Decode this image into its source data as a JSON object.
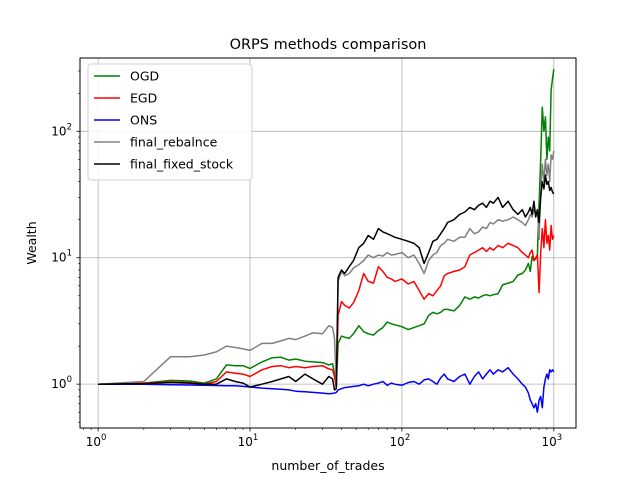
{
  "chart_data": {
    "type": "line",
    "title": "ORPS methods comparison",
    "xlabel": "number_of_trades",
    "ylabel": "Wealth",
    "xscale": "log",
    "yscale": "log",
    "xlim": [
      0.76,
      1400
    ],
    "ylim": [
      0.45,
      380
    ],
    "grid": true,
    "legend_position": "top-left",
    "x_ticks": [
      {
        "base": "10",
        "exp": "0",
        "value": 1
      },
      {
        "base": "10",
        "exp": "1",
        "value": 10
      },
      {
        "base": "10",
        "exp": "2",
        "value": 100
      },
      {
        "base": "10",
        "exp": "3",
        "value": 1000
      }
    ],
    "y_ticks": [
      {
        "base": "10",
        "exp": "0",
        "value": 1
      },
      {
        "base": "10",
        "exp": "1",
        "value": 10
      },
      {
        "base": "10",
        "exp": "2",
        "value": 100
      }
    ],
    "series": [
      {
        "name": "OGD",
        "color": "#008000",
        "x": [
          1,
          2,
          3,
          4,
          5,
          6,
          7,
          8,
          9,
          10,
          12,
          14,
          16,
          18,
          20,
          23,
          26,
          30,
          33,
          35,
          36,
          37,
          38,
          40,
          42,
          45,
          48,
          52,
          56,
          60,
          65,
          70,
          75,
          80,
          85,
          90,
          100,
          110,
          120,
          130,
          140,
          150,
          160,
          170,
          180,
          190,
          200,
          220,
          240,
          260,
          280,
          300,
          320,
          340,
          360,
          380,
          400,
          430,
          460,
          500,
          540,
          580,
          620,
          650,
          680,
          700,
          720,
          740,
          760,
          780,
          800,
          820,
          840,
          860,
          880,
          900,
          920,
          940,
          960,
          980,
          1000
        ],
        "y": [
          1.0,
          1.02,
          1.07,
          1.06,
          1.02,
          1.1,
          1.42,
          1.4,
          1.4,
          1.33,
          1.5,
          1.62,
          1.63,
          1.55,
          1.58,
          1.52,
          1.5,
          1.48,
          1.42,
          1.45,
          1.2,
          0.95,
          2.1,
          2.4,
          2.35,
          2.3,
          2.5,
          2.9,
          2.6,
          2.5,
          2.45,
          2.65,
          2.8,
          3.1,
          3.0,
          2.95,
          2.85,
          2.7,
          2.8,
          2.9,
          3.0,
          3.5,
          3.7,
          3.6,
          3.7,
          3.9,
          3.9,
          3.8,
          4.2,
          4.9,
          4.7,
          4.9,
          4.8,
          5.0,
          5.1,
          5.0,
          5.1,
          5.2,
          6.1,
          6.3,
          6.5,
          7.3,
          7.5,
          8.0,
          9.0,
          7.8,
          10.2,
          9.5,
          9.8,
          10.5,
          27,
          60,
          155,
          100,
          130,
          60,
          90,
          70,
          210,
          260,
          310
        ]
      },
      {
        "name": "EGD",
        "color": "#ff0000",
        "x": [
          1,
          2,
          3,
          4,
          5,
          6,
          7,
          8,
          9,
          10,
          12,
          14,
          16,
          18,
          20,
          23,
          26,
          30,
          33,
          35,
          36,
          37,
          38,
          40,
          42,
          45,
          48,
          52,
          56,
          60,
          65,
          70,
          75,
          80,
          85,
          90,
          100,
          110,
          120,
          130,
          140,
          150,
          160,
          170,
          180,
          190,
          200,
          220,
          240,
          260,
          280,
          300,
          320,
          340,
          360,
          380,
          400,
          430,
          460,
          500,
          540,
          580,
          620,
          650,
          680,
          700,
          720,
          740,
          760,
          780,
          800,
          820,
          840,
          860,
          880,
          900,
          920,
          940,
          960,
          980,
          1000
        ],
        "y": [
          1.0,
          1.02,
          1.04,
          1.03,
          1.0,
          1.05,
          1.25,
          1.22,
          1.2,
          1.15,
          1.3,
          1.38,
          1.4,
          1.35,
          1.38,
          1.35,
          1.38,
          1.4,
          1.32,
          1.3,
          1.15,
          0.95,
          3.5,
          4.5,
          4.2,
          4.0,
          4.4,
          5.5,
          7.5,
          6.5,
          6.3,
          8.5,
          7.8,
          7.0,
          6.8,
          6.5,
          6.8,
          6.2,
          6.5,
          5.5,
          4.7,
          5.2,
          5.0,
          5.5,
          6.0,
          7.2,
          7.5,
          7.8,
          8.0,
          8.5,
          10.5,
          11.0,
          11.5,
          12.0,
          11.2,
          12.0,
          11.5,
          12.5,
          12.0,
          13.0,
          12.5,
          12.0,
          11.0,
          10.5,
          10.0,
          11.0,
          11.5,
          9.5,
          10.0,
          10.5,
          5.3,
          11.0,
          17.0,
          12.0,
          20.0,
          13.0,
          15.0,
          11.5,
          18.0,
          14.0,
          15.0
        ]
      },
      {
        "name": "ONS",
        "color": "#0000ff",
        "x": [
          1,
          2,
          3,
          4,
          5,
          6,
          7,
          8,
          9,
          10,
          12,
          14,
          16,
          18,
          20,
          23,
          26,
          30,
          33,
          35,
          36,
          37,
          38,
          40,
          42,
          45,
          48,
          52,
          56,
          60,
          65,
          70,
          75,
          80,
          85,
          90,
          100,
          110,
          120,
          130,
          140,
          150,
          160,
          170,
          180,
          190,
          200,
          220,
          240,
          260,
          280,
          300,
          320,
          340,
          360,
          380,
          400,
          430,
          460,
          500,
          540,
          580,
          620,
          650,
          680,
          700,
          720,
          740,
          760,
          780,
          800,
          820,
          840,
          860,
          880,
          900,
          920,
          940,
          960,
          980,
          1000
        ],
        "y": [
          1.0,
          1.0,
          0.99,
          0.985,
          0.98,
          0.975,
          0.97,
          0.97,
          0.96,
          0.95,
          0.93,
          0.92,
          0.91,
          0.9,
          0.88,
          0.87,
          0.86,
          0.85,
          0.84,
          0.845,
          0.85,
          0.86,
          0.9,
          0.92,
          0.94,
          0.95,
          0.96,
          0.97,
          1.0,
          0.97,
          1.0,
          1.02,
          1.05,
          0.98,
          1.02,
          1.0,
          0.98,
          1.03,
          1.05,
          1.0,
          1.08,
          1.1,
          1.05,
          1.0,
          1.12,
          1.2,
          1.1,
          1.05,
          1.15,
          1.2,
          1.0,
          1.15,
          1.25,
          1.1,
          1.2,
          1.3,
          1.2,
          1.3,
          1.25,
          1.35,
          1.2,
          1.1,
          1.0,
          0.95,
          0.85,
          0.75,
          0.7,
          0.65,
          0.7,
          0.6,
          0.75,
          0.8,
          0.65,
          0.95,
          1.1,
          1.2,
          1.1,
          1.3,
          1.25,
          1.3,
          1.25
        ]
      },
      {
        "name": "final_rebalnce",
        "color": "#808080",
        "x": [
          1,
          2,
          3,
          4,
          5,
          6,
          7,
          8,
          9,
          10,
          12,
          14,
          16,
          18,
          20,
          23,
          26,
          30,
          33,
          35,
          36,
          37,
          38,
          40,
          42,
          45,
          48,
          52,
          56,
          60,
          65,
          70,
          75,
          80,
          85,
          90,
          100,
          110,
          120,
          130,
          140,
          150,
          160,
          170,
          180,
          190,
          200,
          220,
          240,
          260,
          280,
          300,
          320,
          340,
          360,
          380,
          400,
          430,
          460,
          500,
          540,
          580,
          620,
          650,
          680,
          700,
          720,
          740,
          760,
          780,
          800,
          820,
          840,
          860,
          880,
          900,
          920,
          940,
          960,
          980,
          1000
        ],
        "y": [
          1.0,
          1.05,
          1.65,
          1.65,
          1.7,
          1.8,
          2.0,
          1.95,
          1.9,
          1.85,
          2.1,
          2.1,
          2.2,
          2.3,
          2.25,
          2.4,
          2.55,
          2.5,
          2.9,
          2.8,
          2.3,
          1.0,
          6.5,
          7.8,
          7.2,
          7.5,
          8.3,
          8.8,
          9.5,
          10.5,
          10.0,
          10.5,
          10.3,
          11.0,
          10.5,
          10.6,
          11.0,
          10.0,
          10.5,
          9.0,
          7.5,
          9.5,
          10.5,
          11.0,
          12.5,
          13.0,
          14.0,
          13.5,
          14.5,
          14.5,
          17.0,
          15.5,
          16.0,
          17.5,
          17.0,
          19.0,
          18.5,
          20.0,
          19.5,
          20.0,
          21.0,
          20.0,
          19.0,
          18.0,
          20.0,
          22.0,
          21.0,
          24.0,
          22.5,
          23.5,
          14.0,
          35.0,
          55.0,
          40.0,
          60.0,
          45.0,
          55.0,
          40.0,
          65.0,
          60.0,
          70.0
        ]
      },
      {
        "name": "final_fixed_stock",
        "color": "#000000",
        "x": [
          1,
          2,
          3,
          4,
          5,
          6,
          7,
          8,
          9,
          10,
          12,
          14,
          16,
          18,
          20,
          23,
          26,
          30,
          33,
          35,
          36,
          37,
          38,
          40,
          42,
          45,
          48,
          52,
          56,
          60,
          65,
          70,
          75,
          80,
          85,
          90,
          100,
          110,
          120,
          130,
          140,
          150,
          160,
          170,
          180,
          190,
          200,
          220,
          240,
          260,
          280,
          300,
          320,
          340,
          360,
          380,
          400,
          430,
          460,
          500,
          540,
          580,
          620,
          650,
          680,
          700,
          720,
          740,
          760,
          780,
          800,
          820,
          840,
          860,
          880,
          900,
          920,
          940,
          960,
          980,
          1000
        ],
        "y": [
          1.0,
          1.01,
          1.03,
          1.02,
          1.0,
          1.0,
          1.1,
          1.05,
          1.02,
          0.95,
          1.0,
          1.05,
          1.1,
          1.15,
          1.05,
          1.2,
          1.1,
          1.0,
          1.15,
          1.1,
          0.9,
          0.92,
          7.0,
          8.0,
          7.5,
          8.5,
          9.5,
          12.0,
          13.0,
          15.0,
          14.0,
          17.0,
          16.0,
          15.5,
          15.0,
          14.5,
          14.0,
          13.5,
          13.0,
          12.0,
          9.0,
          11.0,
          13.5,
          14.0,
          15.5,
          17.0,
          19.0,
          20.0,
          22.0,
          23.0,
          25.0,
          24.0,
          26.0,
          27.0,
          25.0,
          28.0,
          27.0,
          30.0,
          25.0,
          28.0,
          24.0,
          22.0,
          24.0,
          21.0,
          23.0,
          25.0,
          22.0,
          28.0,
          21.0,
          24.0,
          19.0,
          30.0,
          40.0,
          35.0,
          45.0,
          38.0,
          40.0,
          34.0,
          36.0,
          33.0,
          32.0
        ]
      }
    ]
  }
}
